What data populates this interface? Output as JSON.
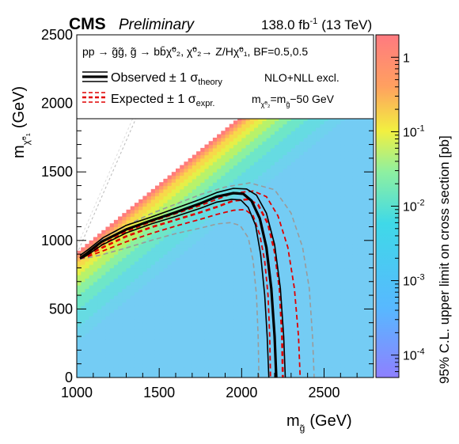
{
  "header": {
    "experiment": "CMS",
    "status": "Preliminary",
    "lumi": "138.0 fb",
    "lumi_sup": "-1",
    "energy": "(13 TeV)"
  },
  "legend": {
    "process": "pp → g̃g̃, g̃ → bb̄χ̃⁰₂, χ̃⁰₂→ Z/Hχ̃⁰₁, BF=0.5,0.5",
    "observed": "Observed ± 1 σ",
    "observed_sub": "theory",
    "expected": "Expected ± 1 σ",
    "expected_sub": "expr.",
    "order": "NLO+NLL excl.",
    "mass_relation": "m",
    "mass_relation_rest": "=m",
    "mass_relation_tail": "−50 GeV",
    "mass_sub_a": "χ̃⁰₂",
    "mass_sub_b": "g̃"
  },
  "chart_data": {
    "type": "heatmap",
    "xlabel": "m",
    "xlabel_sub": "g̃",
    "xlabel_unit": "(GeV)",
    "ylabel": "m",
    "ylabel_sub": "χ̃⁰₁",
    "ylabel_unit": "(GeV)",
    "zlabel": "95% C.L. upper limit on cross section [pb]",
    "xlim": [
      1000,
      2800
    ],
    "ylim": [
      0,
      2500
    ],
    "zlim": [
      5e-05,
      2
    ],
    "z_log": true,
    "x_ticks": [
      1000,
      1500,
      2000,
      2500
    ],
    "y_ticks": [
      0,
      500,
      1000,
      1500,
      2000,
      2500
    ],
    "z_ticks": [
      {
        "value": 1,
        "label": "1"
      },
      {
        "value": 0.1,
        "label": "10",
        "sup": "-1"
      },
      {
        "value": 0.01,
        "label": "10",
        "sup": "-2"
      },
      {
        "value": 0.001,
        "label": "10",
        "sup": "-3"
      },
      {
        "value": 0.0001,
        "label": "10",
        "sup": "-4"
      }
    ],
    "colors": {
      "observed": "#000000",
      "expected": "#e00000",
      "observed_band": "#000000",
      "expected_band": "#999999"
    },
    "observed": [
      [
        1020,
        870
      ],
      [
        1060,
        905
      ],
      [
        1150,
        990
      ],
      [
        1300,
        1080
      ],
      [
        1450,
        1145
      ],
      [
        1600,
        1205
      ],
      [
        1750,
        1270
      ],
      [
        1850,
        1320
      ],
      [
        1950,
        1345
      ],
      [
        2010,
        1340
      ],
      [
        2060,
        1290
      ],
      [
        2110,
        1160
      ],
      [
        2150,
        950
      ],
      [
        2180,
        650
      ],
      [
        2200,
        300
      ],
      [
        2210,
        0
      ]
    ],
    "observed_plus": [
      [
        1020,
        890
      ],
      [
        1070,
        935
      ],
      [
        1160,
        1020
      ],
      [
        1300,
        1110
      ],
      [
        1450,
        1170
      ],
      [
        1600,
        1235
      ],
      [
        1750,
        1300
      ],
      [
        1850,
        1350
      ],
      [
        1950,
        1380
      ],
      [
        2030,
        1375
      ],
      [
        2090,
        1330
      ],
      [
        2150,
        1200
      ],
      [
        2200,
        970
      ],
      [
        2235,
        650
      ],
      [
        2255,
        300
      ],
      [
        2265,
        0
      ]
    ],
    "observed_minus": [
      [
        1020,
        865
      ],
      [
        1060,
        890
      ],
      [
        1150,
        965
      ],
      [
        1300,
        1055
      ],
      [
        1450,
        1120
      ],
      [
        1600,
        1175
      ],
      [
        1750,
        1235
      ],
      [
        1850,
        1280
      ],
      [
        1940,
        1300
      ],
      [
        1995,
        1295
      ],
      [
        2040,
        1240
      ],
      [
        2085,
        1110
      ],
      [
        2115,
        900
      ],
      [
        2140,
        600
      ],
      [
        2155,
        300
      ],
      [
        2165,
        0
      ]
    ],
    "expected": [
      [
        1020,
        870
      ],
      [
        1060,
        890
      ],
      [
        1150,
        945
      ],
      [
        1300,
        1030
      ],
      [
        1450,
        1095
      ],
      [
        1600,
        1150
      ],
      [
        1750,
        1205
      ],
      [
        1850,
        1245
      ],
      [
        1950,
        1290
      ],
      [
        2040,
        1300
      ],
      [
        2100,
        1260
      ],
      [
        2160,
        1120
      ],
      [
        2200,
        920
      ],
      [
        2230,
        650
      ],
      [
        2245,
        300
      ],
      [
        2250,
        0
      ]
    ],
    "expected_plus": [
      [
        1020,
        880
      ],
      [
        1070,
        905
      ],
      [
        1160,
        975
      ],
      [
        1300,
        1065
      ],
      [
        1450,
        1135
      ],
      [
        1600,
        1195
      ],
      [
        1750,
        1255
      ],
      [
        1850,
        1300
      ],
      [
        1950,
        1345
      ],
      [
        2070,
        1360
      ],
      [
        2150,
        1320
      ],
      [
        2220,
        1180
      ],
      [
        2280,
        950
      ],
      [
        2320,
        650
      ],
      [
        2345,
        300
      ],
      [
        2355,
        0
      ]
    ],
    "expected_minus": [
      [
        1020,
        868
      ],
      [
        1060,
        880
      ],
      [
        1150,
        920
      ],
      [
        1300,
        990
      ],
      [
        1450,
        1050
      ],
      [
        1600,
        1105
      ],
      [
        1750,
        1155
      ],
      [
        1850,
        1190
      ],
      [
        1950,
        1220
      ],
      [
        2020,
        1225
      ],
      [
        2070,
        1180
      ],
      [
        2110,
        1040
      ],
      [
        2140,
        850
      ],
      [
        2160,
        600
      ],
      [
        2170,
        300
      ],
      [
        2175,
        0
      ]
    ],
    "expected_2plus": [
      [
        1020,
        895
      ],
      [
        1080,
        940
      ],
      [
        1180,
        1030
      ],
      [
        1320,
        1120
      ],
      [
        1450,
        1195
      ],
      [
        1600,
        1265
      ],
      [
        1750,
        1335
      ],
      [
        1900,
        1390
      ],
      [
        2050,
        1420
      ],
      [
        2200,
        1370
      ],
      [
        2300,
        1200
      ],
      [
        2370,
        950
      ],
      [
        2410,
        650
      ],
      [
        2430,
        300
      ],
      [
        2440,
        0
      ]
    ],
    "expected_2minus": [
      [
        1020,
        865
      ],
      [
        1060,
        872
      ],
      [
        1150,
        895
      ],
      [
        1300,
        945
      ],
      [
        1450,
        1000
      ],
      [
        1600,
        1050
      ],
      [
        1750,
        1090
      ],
      [
        1850,
        1120
      ],
      [
        1930,
        1130
      ],
      [
        1990,
        1110
      ],
      [
        2040,
        1020
      ],
      [
        2070,
        850
      ],
      [
        2090,
        600
      ],
      [
        2100,
        300
      ],
      [
        2105,
        0
      ]
    ]
  }
}
